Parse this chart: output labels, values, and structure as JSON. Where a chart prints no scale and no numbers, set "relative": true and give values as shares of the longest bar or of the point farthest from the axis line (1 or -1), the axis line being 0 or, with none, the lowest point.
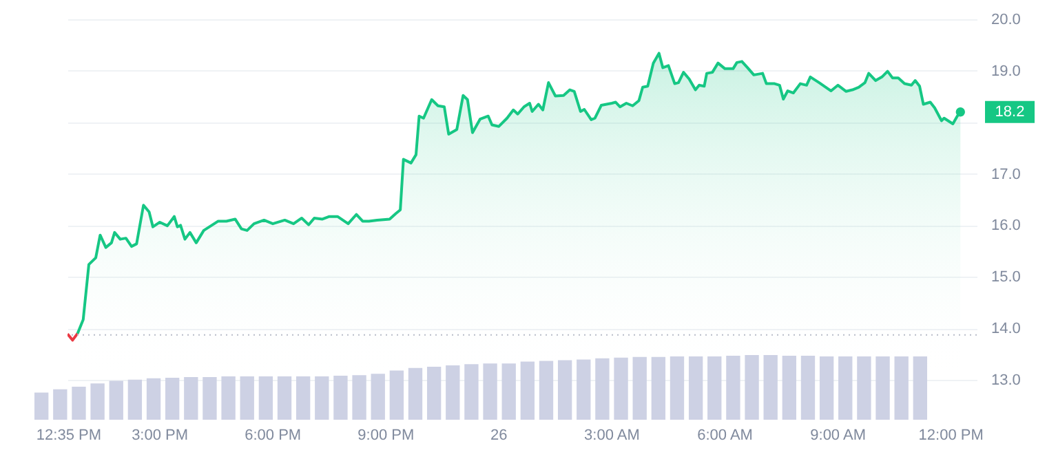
{
  "chart_data": [
    {
      "type": "area",
      "xlim": [
        "--01-25T12:34",
        "--01-26T12:42"
      ],
      "ylim": [
        13,
        20
      ],
      "xticks": [
        {
          "value": "--01-25T12:35",
          "label": "12:35 PM"
        },
        {
          "value": "--01-25T15:00",
          "label": "3:00 PM"
        },
        {
          "value": "--01-25T18:00",
          "label": "6:00 PM"
        },
        {
          "value": "--01-25T21:00",
          "label": "9:00 PM"
        },
        {
          "value": "--01-26",
          "label": "26"
        },
        {
          "value": "--01-26T03:00",
          "label": "3:00 AM"
        },
        {
          "value": "--01-26T06:00",
          "label": "6:00 AM"
        },
        {
          "value": "--01-26T09:00",
          "label": "9:00 AM"
        },
        {
          "value": "--01-26T12:00",
          "label": "12:00 PM"
        }
      ],
      "yticks": [
        {
          "value": 13,
          "label": "13.0"
        },
        {
          "value": 14,
          "label": "14.0"
        },
        {
          "value": 15,
          "label": "15.0"
        },
        {
          "value": 16,
          "label": "16.0"
        },
        {
          "value": 17,
          "label": "17.0"
        },
        {
          "value": 18,
          "label": null
        },
        {
          "value": 19,
          "label": "19.0"
        },
        {
          "value": 20,
          "label": "20.0"
        }
      ],
      "grid": "y",
      "ref_lines": [
        {
          "axis": "y",
          "value": 13.87,
          "line_style": "dotted",
          "color": "#b8bcc8"
        }
      ],
      "annotations": [
        {
          "text": "18.2",
          "x": "--01-26T12:16",
          "y": 18.2
        }
      ],
      "series": [
        {
          "type": "line",
          "color": "#ea3943",
          "x": [
            "--01-25T12:34",
            "--01-25T12:42",
            "--01-25T12:50"
          ],
          "values": [
            13.89,
            13.77,
            13.9
          ]
        },
        {
          "type": "area",
          "color": "#16c784",
          "x": [
            "--01-25T12:50",
            "--01-25T12:59",
            "--01-25T13:08",
            "--01-25T13:19",
            "--01-25T13:26",
            "--01-25T13:35",
            "--01-25T13:44",
            "--01-25T13:49",
            "--01-25T13:58",
            "--01-25T14:07",
            "--01-25T14:16",
            "--01-25T14:24",
            "--01-25T14:35",
            "--01-25T14:44",
            "--01-25T14:50",
            "--01-25T15:01",
            "--01-25T15:13",
            "--01-25T15:24",
            "--01-25T15:29",
            "--01-25T15:34",
            "--01-25T15:41",
            "--01-25T15:49",
            "--01-25T15:59",
            "--01-25T16:11",
            "--01-25T16:20",
            "--01-25T16:34",
            "--01-25T16:47",
            "--01-25T17:01",
            "--01-25T17:11",
            "--01-25T17:20",
            "--01-25T17:31",
            "--01-25T17:47",
            "--01-25T18:01",
            "--01-25T18:20",
            "--01-25T18:34",
            "--01-25T18:47",
            "--01-25T18:58",
            "--01-25T19:07",
            "--01-25T19:20",
            "--01-25T19:31",
            "--01-25T19:44",
            "--01-25T20:01",
            "--01-25T20:14",
            "--01-25T20:24",
            "--01-25T20:34",
            "--01-25T20:47",
            "--01-25T21:07",
            "--01-25T21:17",
            "--01-25T21:24",
            "--01-25T21:29",
            "--01-25T21:41",
            "--01-25T21:49",
            "--01-25T21:54",
            "--01-25T22:01",
            "--01-25T22:14",
            "--01-25T22:24",
            "--01-25T22:34",
            "--01-25T22:41",
            "--01-25T22:54",
            "--01-25T23:04",
            "--01-25T23:11",
            "--01-25T23:19",
            "--01-25T23:31",
            "--01-25T23:44",
            "--01-25T23:50",
            "--01-26T00:01",
            "--01-26T00:14",
            "--01-26T00:24",
            "--01-26T00:31",
            "--01-26T00:41",
            "--01-26T00:50",
            "--01-26T00:54",
            "--01-26T01:04",
            "--01-26T01:11",
            "--01-26T01:20",
            "--01-26T01:31",
            "--01-26T01:44",
            "--01-26T01:54",
            "--01-26T02:01",
            "--01-26T02:11",
            "--01-26T02:17",
            "--01-26T02:28",
            "--01-26T02:34",
            "--01-26T02:44",
            "--01-26T03:01",
            "--01-26T03:07",
            "--01-26T03:14",
            "--01-26T03:24",
            "--01-26T03:34",
            "--01-26T03:44",
            "--01-26T03:50",
            "--01-26T03:58",
            "--01-26T04:07",
            "--01-26T04:16",
            "--01-26T04:22",
            "--01-26T04:31",
            "--01-26T04:41",
            "--01-26T04:47",
            "--01-26T04:55",
            "--01-26T05:04",
            "--01-26T05:14",
            "--01-26T05:20",
            "--01-26T05:28",
            "--01-26T05:32",
            "--01-26T05:41",
            "--01-26T05:50",
            "--01-26T06:01",
            "--01-26T06:14",
            "--01-26T06:20",
            "--01-26T06:28",
            "--01-26T06:37",
            "--01-26T06:47",
            "--01-26T07:01",
            "--01-26T07:07",
            "--01-26T07:20",
            "--01-26T07:28",
            "--01-26T07:34",
            "--01-26T07:41",
            "--01-26T07:50",
            "--01-26T08:01",
            "--01-26T08:11",
            "--01-26T08:17",
            "--01-26T08:31",
            "--01-26T08:44",
            "--01-26T08:50",
            "--01-26T09:01",
            "--01-26T09:14",
            "--01-26T09:24",
            "--01-26T09:34",
            "--01-26T09:44",
            "--01-26T09:50",
            "--01-26T10:01",
            "--01-26T10:11",
            "--01-26T10:20",
            "--01-26T10:28",
            "--01-26T10:37",
            "--01-26T10:47",
            "--01-26T10:58",
            "--01-26T11:04",
            "--01-26T11:11",
            "--01-26T11:17",
            "--01-26T11:28",
            "--01-26T11:35",
            "--01-26T11:46",
            "--01-26T11:50",
            "--01-26T12:04",
            "--01-26T12:11",
            "--01-26T12:16"
          ],
          "values": [
            13.9,
            14.17,
            15.24,
            15.37,
            15.81,
            15.57,
            15.66,
            15.86,
            15.73,
            15.75,
            15.59,
            15.64,
            16.39,
            16.26,
            15.97,
            16.06,
            15.99,
            16.17,
            15.97,
            16.0,
            15.73,
            15.86,
            15.66,
            15.9,
            15.97,
            16.08,
            16.08,
            16.12,
            15.93,
            15.9,
            16.03,
            16.1,
            16.03,
            16.1,
            16.03,
            16.14,
            16.01,
            16.14,
            16.12,
            16.17,
            16.17,
            16.03,
            16.21,
            16.08,
            16.08,
            16.1,
            16.12,
            16.23,
            16.3,
            17.28,
            17.21,
            17.37,
            18.12,
            18.08,
            18.44,
            18.32,
            18.3,
            17.77,
            17.86,
            18.52,
            18.44,
            17.8,
            18.06,
            18.12,
            17.95,
            17.92,
            18.08,
            18.24,
            18.16,
            18.3,
            18.37,
            18.21,
            18.35,
            18.24,
            18.77,
            18.51,
            18.52,
            18.63,
            18.6,
            18.21,
            18.25,
            18.05,
            18.08,
            18.33,
            18.37,
            18.39,
            18.3,
            18.37,
            18.32,
            18.42,
            18.68,
            18.7,
            19.15,
            19.34,
            19.06,
            19.1,
            18.75,
            18.77,
            18.97,
            18.84,
            18.63,
            18.72,
            18.7,
            18.95,
            18.97,
            19.15,
            19.04,
            19.04,
            19.16,
            19.18,
            19.06,
            18.92,
            18.95,
            18.75,
            18.75,
            18.72,
            18.45,
            18.61,
            18.57,
            18.75,
            18.72,
            18.88,
            18.77,
            18.66,
            18.61,
            18.72,
            18.6,
            18.63,
            18.68,
            18.77,
            18.95,
            18.81,
            18.88,
            18.99,
            18.86,
            18.86,
            18.75,
            18.72,
            18.81,
            18.7,
            18.35,
            18.39,
            18.28,
            18.03,
            18.08,
            17.97,
            18.12,
            18.2
          ]
        }
      ]
    },
    {
      "type": "bar",
      "relative": true,
      "tick_labels": false,
      "categories": [
        null,
        null,
        null,
        null,
        null,
        null,
        null,
        null,
        null,
        null,
        null,
        null,
        null,
        null,
        null,
        null,
        null,
        null,
        null,
        null,
        null,
        null,
        null,
        null,
        null,
        null,
        null,
        null,
        null,
        null,
        null,
        null,
        null,
        null,
        null,
        null,
        null,
        null,
        null,
        null,
        null,
        null,
        null,
        null,
        null,
        null,
        null,
        null
      ],
      "series": [
        {
          "color": "#cdd1e4",
          "values": [
            0.42,
            0.47,
            0.51,
            0.56,
            0.6,
            0.62,
            0.64,
            0.65,
            0.66,
            0.66,
            0.67,
            0.67,
            0.67,
            0.67,
            0.67,
            0.67,
            0.68,
            0.69,
            0.71,
            0.76,
            0.8,
            0.82,
            0.84,
            0.86,
            0.87,
            0.87,
            0.9,
            0.91,
            0.92,
            0.93,
            0.95,
            0.96,
            0.97,
            0.97,
            0.98,
            0.98,
            0.98,
            0.99,
            1,
            1,
            0.99,
            0.99,
            0.98,
            0.98,
            0.98,
            0.98,
            0.98,
            0.98
          ]
        }
      ]
    }
  ]
}
